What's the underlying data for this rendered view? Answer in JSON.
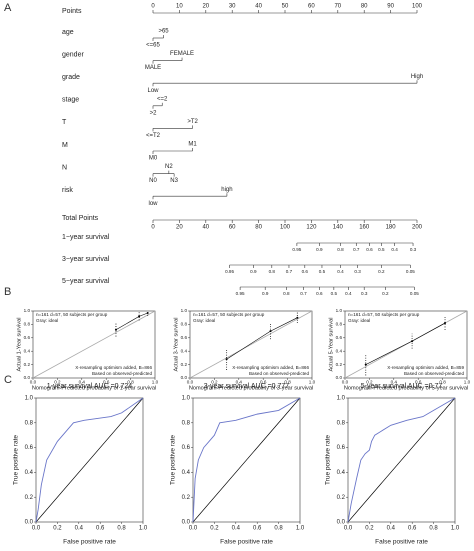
{
  "panels": [
    "A",
    "B",
    "C"
  ],
  "chart_data": [
    {
      "type": "nomogram",
      "points_label": "Points",
      "xlim": [
        0,
        100
      ],
      "xticks": [
        0,
        10,
        20,
        30,
        40,
        50,
        60,
        70,
        80,
        90,
        100
      ],
      "total_label": "Total Points",
      "total_xlim": [
        0,
        200
      ],
      "total_xticks": [
        0,
        20,
        40,
        60,
        80,
        100,
        120,
        140,
        160,
        180,
        200
      ],
      "rows": [
        {
          "name": "age",
          "ticks": [
            {
              "value": 0,
              "label": "<=65"
            },
            {
              "value": 4,
              "label": ">65"
            }
          ]
        },
        {
          "name": "gender",
          "ticks": [
            {
              "value": 0,
              "label": "MALE"
            },
            {
              "value": 11,
              "label": "FEMALE"
            }
          ]
        },
        {
          "name": "grade",
          "ticks": [
            {
              "value": 0,
              "label": "Low"
            },
            {
              "value": 100,
              "label": "High"
            }
          ]
        },
        {
          "name": "stage",
          "ticks": [
            {
              "value": 0,
              "label": ">2"
            },
            {
              "value": 3.5,
              "label": "<=2"
            }
          ]
        },
        {
          "name": "T",
          "ticks": [
            {
              "value": 0,
              "label": "<=T2"
            },
            {
              "value": 15,
              "label": ">T2"
            }
          ]
        },
        {
          "name": "M",
          "ticks": [
            {
              "value": 0,
              "label": "M0"
            },
            {
              "value": 15,
              "label": "M1"
            }
          ]
        },
        {
          "name": "N",
          "ticks": [
            {
              "value": 0,
              "label": "N0"
            },
            {
              "value": 6,
              "label": "N2"
            },
            {
              "value": 8,
              "label": "N3"
            }
          ]
        },
        {
          "name": "risk",
          "ticks": [
            {
              "value": 0,
              "label": "low"
            },
            {
              "value": 28,
              "label": "high"
            }
          ]
        }
      ],
      "survival_rows": [
        {
          "name": "1−year survival",
          "ticks": [
            {
              "value": 109,
              "label": "0.95"
            },
            {
              "value": 126,
              "label": "0.9"
            },
            {
              "value": 142,
              "label": "0.8"
            },
            {
              "value": 154,
              "label": "0.7"
            },
            {
              "value": 164,
              "label": "0.6"
            },
            {
              "value": 173,
              "label": "0.5"
            },
            {
              "value": 183,
              "label": "0.4"
            },
            {
              "value": 197,
              "label": "0.3"
            }
          ]
        },
        {
          "name": "3−year survival",
          "ticks": [
            {
              "value": 58,
              "label": "0.95"
            },
            {
              "value": 76,
              "label": "0.9"
            },
            {
              "value": 90,
              "label": "0.8"
            },
            {
              "value": 103,
              "label": "0.7"
            },
            {
              "value": 115,
              "label": "0.6"
            },
            {
              "value": 128,
              "label": "0.5"
            },
            {
              "value": 142,
              "label": "0.4"
            },
            {
              "value": 155,
              "label": "0.3"
            },
            {
              "value": 173,
              "label": "0.2"
            },
            {
              "value": 195,
              "label": "0.05"
            }
          ]
        },
        {
          "name": "5−year survival",
          "ticks": [
            {
              "value": 66,
              "label": "0.95"
            },
            {
              "value": 85,
              "label": "0.9"
            },
            {
              "value": 101,
              "label": "0.8"
            },
            {
              "value": 114,
              "label": "0.7"
            },
            {
              "value": 126,
              "label": "0.6"
            },
            {
              "value": 137,
              "label": "0.5"
            },
            {
              "value": 148,
              "label": "0.4"
            },
            {
              "value": 160,
              "label": "0.3"
            },
            {
              "value": 176,
              "label": "0.2"
            },
            {
              "value": 198,
              "label": "0.05"
            }
          ]
        }
      ]
    },
    {
      "type": "calibration",
      "annotations": [
        "n=161 d=57, 50 subjects per group",
        "Gray: ideal",
        "X-resampling optimism added, B=866",
        "Based on observed-predicted"
      ],
      "x_label": "Nomogram-Predicted probability of 1-year survival",
      "y_label": "Actual 1-Year survival",
      "xlim": [
        0,
        1
      ],
      "ylim": [
        0,
        1
      ],
      "xticks": [
        {
          "value": 0,
          "label": "0.0"
        },
        0.2,
        0.4,
        0.6,
        0.8,
        {
          "value": 1,
          "label": "1.0"
        }
      ],
      "yticks": [
        {
          "value": 0,
          "label": "0.0"
        },
        0.2,
        0.4,
        0.6,
        0.8,
        {
          "value": 1,
          "label": "1.0"
        }
      ],
      "x": [
        0.68,
        0.87,
        0.94
      ],
      "values": [
        0.72,
        0.92,
        0.97
      ],
      "ci_low": [
        0.62,
        0.86,
        0.93
      ],
      "ci_high": [
        0.82,
        0.98,
        1.0
      ]
    },
    {
      "type": "calibration",
      "annotations": [
        "n=161 d=57, 50 subjects per group",
        "Gray: ideal",
        "X-resampling optimism added, B=866",
        "Based on observed-predicted"
      ],
      "x_label": "Nomogram-Predicted probability of 3-year survival",
      "y_label": "Actual 3-Year survival",
      "xlim": [
        0,
        1
      ],
      "ylim": [
        0,
        1
      ],
      "xticks": [
        {
          "value": 0,
          "label": "0.0"
        },
        0.2,
        0.4,
        0.6,
        0.8,
        {
          "value": 1,
          "label": "1.0"
        }
      ],
      "yticks": [
        {
          "value": 0,
          "label": "0.0"
        },
        0.2,
        0.4,
        0.6,
        0.8,
        {
          "value": 1,
          "label": "1.0"
        }
      ],
      "x": [
        0.3,
        0.66,
        0.88
      ],
      "values": [
        0.28,
        0.7,
        0.9
      ],
      "ci_low": [
        0.12,
        0.58,
        0.82
      ],
      "ci_high": [
        0.44,
        0.82,
        0.98
      ]
    },
    {
      "type": "calibration",
      "annotations": [
        "n=161 d=57, 50 subjects per group",
        "Gray: ideal",
        "X-resampling optimism added, B=859",
        "Based on observed-predicted"
      ],
      "x_label": "Nomogram-Predicted probability of 5-year survival",
      "y_label": "Actual 5-Year survival",
      "xlim": [
        0,
        1
      ],
      "ylim": [
        0,
        1
      ],
      "xticks": [
        {
          "value": 0,
          "label": "0.0"
        },
        0.2,
        0.4,
        0.6,
        0.8,
        {
          "value": 1,
          "label": "1.0"
        }
      ],
      "yticks": [
        {
          "value": 0,
          "label": "0.0"
        },
        0.2,
        0.4,
        0.6,
        0.8,
        {
          "value": 1,
          "label": "1.0"
        }
      ],
      "x": [
        0.17,
        0.55,
        0.82
      ],
      "values": [
        0.2,
        0.55,
        0.82
      ],
      "ci_low": [
        0.04,
        0.44,
        0.72
      ],
      "ci_high": [
        0.36,
        0.66,
        0.92
      ]
    },
    {
      "type": "roc",
      "title": "1-year survival AUC =0.724",
      "color": "#6a76c9",
      "x_label": "False positive rate",
      "y_label": "True positive rate",
      "xlim": [
        0,
        1
      ],
      "ylim": [
        0,
        1
      ],
      "xticks": [
        {
          "value": 0,
          "label": "0.0"
        },
        0.2,
        0.4,
        0.6,
        0.8,
        {
          "value": 1,
          "label": "1.0"
        }
      ],
      "yticks": [
        {
          "value": 0,
          "label": "0.0"
        },
        0.2,
        0.4,
        0.6,
        0.8,
        {
          "value": 1,
          "label": "1.0"
        }
      ],
      "x": [
        0,
        0.02,
        0.05,
        0.1,
        0.2,
        0.35,
        0.45,
        0.7,
        0.8,
        1
      ],
      "values": [
        0,
        0.1,
        0.3,
        0.5,
        0.65,
        0.8,
        0.82,
        0.85,
        0.88,
        1
      ]
    },
    {
      "type": "roc",
      "title": "3-year survival AUC =0.777",
      "color": "#6a76c9",
      "x_label": "False positive rate",
      "y_label": "True positive rate",
      "xlim": [
        0,
        1
      ],
      "ylim": [
        0,
        1
      ],
      "xticks": [
        {
          "value": 0,
          "label": "0.0"
        },
        0.2,
        0.4,
        0.6,
        0.8,
        {
          "value": 1,
          "label": "1.0"
        }
      ],
      "yticks": [
        {
          "value": 0,
          "label": "0.0"
        },
        0.2,
        0.4,
        0.6,
        0.8,
        {
          "value": 1,
          "label": "1.0"
        }
      ],
      "x": [
        0,
        0.02,
        0.05,
        0.1,
        0.15,
        0.2,
        0.25,
        0.4,
        0.6,
        0.8,
        1
      ],
      "values": [
        0,
        0.35,
        0.5,
        0.6,
        0.65,
        0.7,
        0.8,
        0.82,
        0.87,
        0.9,
        1
      ]
    },
    {
      "type": "roc",
      "title": "5-year survival AUC =0.77",
      "color": "#6a76c9",
      "x_label": "False positive rate",
      "y_label": "True positive rate",
      "xlim": [
        0,
        1
      ],
      "ylim": [
        0,
        1
      ],
      "xticks": [
        {
          "value": 0,
          "label": "0.0"
        },
        0.2,
        0.4,
        0.6,
        0.8,
        {
          "value": 1,
          "label": "1.0"
        }
      ],
      "yticks": [
        {
          "value": 0,
          "label": "0.0"
        },
        0.2,
        0.4,
        0.6,
        0.8,
        {
          "value": 1,
          "label": "1.0"
        }
      ],
      "x": [
        0,
        0.03,
        0.08,
        0.12,
        0.16,
        0.2,
        0.22,
        0.25,
        0.4,
        0.55,
        0.7,
        0.8,
        1
      ],
      "values": [
        0,
        0.15,
        0.35,
        0.5,
        0.55,
        0.58,
        0.65,
        0.7,
        0.78,
        0.82,
        0.85,
        0.9,
        1
      ]
    }
  ]
}
